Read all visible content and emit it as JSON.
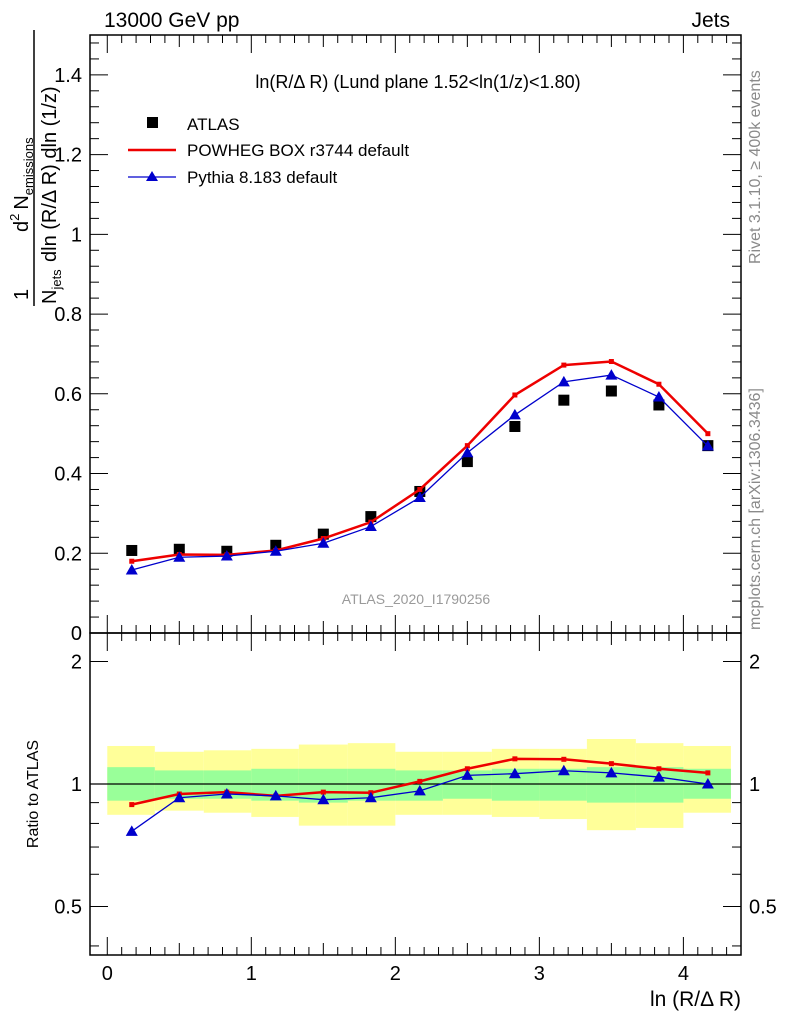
{
  "header": {
    "left": "13000 GeV pp",
    "right": "Jets"
  },
  "side_labels": {
    "rivet": "Rivet 3.1.10, ≥ 400k events",
    "mcplots": "mcplots.cern.ch [arXiv:1306.3436]"
  },
  "chart_data": [
    {
      "type": "line",
      "panel": "main",
      "title": "ln(R/Δ R) (Lund plane 1.52<ln(1/z)<1.80)",
      "watermark": "ATLAS_2020_I1790256",
      "ylabel": "1/N_jets d² N_emissions / dln (R/Δ R) dln (1/z)",
      "ylabel_parts": {
        "frac_num": "1",
        "frac_den_main": "N",
        "frac_den_sub": "jets",
        "d2": "d",
        "d2_sup": "2",
        "n": "N",
        "n_sub": "emissions",
        "rest": "dln (R/Δ R) dln (1/z)"
      },
      "xlim": [
        -0.12,
        4.4
      ],
      "ylim": [
        0,
        1.5
      ],
      "y_ticks": [
        0,
        0.2,
        0.4,
        0.6,
        0.8,
        1,
        1.2,
        1.4
      ],
      "y_tick_labels": [
        "0",
        "0.2",
        "0.4",
        "0.6",
        "0.8",
        "1",
        "1.2",
        "1.4"
      ],
      "legend_position": "top-left",
      "x": [
        0.17,
        0.5,
        0.83,
        1.17,
        1.5,
        1.83,
        2.17,
        2.5,
        2.83,
        3.17,
        3.5,
        3.83,
        4.17
      ],
      "series": [
        {
          "name": "ATLAS",
          "color": "#000000",
          "marker": "square",
          "values": [
            0.207,
            0.21,
            0.205,
            0.22,
            0.248,
            0.292,
            0.355,
            0.43,
            0.518,
            0.584,
            0.607,
            0.572,
            0.47
          ]
        },
        {
          "name": "POWHEG BOX r3744 default",
          "color": "#ee0000",
          "marker": "small-square",
          "values": [
            0.18,
            0.197,
            0.196,
            0.207,
            0.237,
            0.278,
            0.36,
            0.47,
            0.597,
            0.672,
            0.681,
            0.624,
            0.5
          ]
        },
        {
          "name": "Pythia 8.183 default",
          "color": "#0000cc",
          "marker": "triangle",
          "values": [
            0.158,
            0.19,
            0.193,
            0.205,
            0.225,
            0.267,
            0.34,
            0.452,
            0.547,
            0.63,
            0.647,
            0.592,
            0.469
          ]
        }
      ]
    },
    {
      "type": "line",
      "panel": "ratio",
      "ylabel": "Ratio to ATLAS",
      "xlabel": "ln (R/Δ R)",
      "xlim": [
        -0.12,
        4.4
      ],
      "ylim": [
        0.38,
        2.35
      ],
      "y_ticks": [
        0.5,
        1,
        2
      ],
      "y_tick_labels": [
        "0.5",
        "1",
        "2"
      ],
      "x_ticks": [
        0,
        1,
        2,
        3,
        4
      ],
      "x_tick_labels": [
        "0",
        "1",
        "2",
        "3",
        "4"
      ],
      "x_edges": [
        0,
        0.33,
        0.67,
        1,
        1.33,
        1.67,
        2,
        2.33,
        2.67,
        3,
        3.33,
        3.67,
        4,
        4.33
      ],
      "band_inner": {
        "color": "#99ff99",
        "lo": [
          0.91,
          0.92,
          0.92,
          0.91,
          0.9,
          0.91,
          0.91,
          0.92,
          0.91,
          0.91,
          0.9,
          0.9,
          0.92
        ],
        "hi": [
          1.1,
          1.08,
          1.08,
          1.09,
          1.09,
          1.09,
          1.08,
          1.08,
          1.09,
          1.09,
          1.1,
          1.1,
          1.09
        ]
      },
      "band_outer": {
        "color": "#ffff99",
        "lo": [
          0.84,
          0.86,
          0.85,
          0.83,
          0.79,
          0.79,
          0.84,
          0.84,
          0.83,
          0.82,
          0.77,
          0.78,
          0.85
        ],
        "hi": [
          1.24,
          1.2,
          1.21,
          1.22,
          1.25,
          1.26,
          1.2,
          1.2,
          1.22,
          1.22,
          1.29,
          1.26,
          1.24
        ]
      },
      "x": [
        0.17,
        0.5,
        0.83,
        1.17,
        1.5,
        1.83,
        2.17,
        2.5,
        2.83,
        3.17,
        3.5,
        3.83,
        4.17
      ],
      "series": [
        {
          "name": "POWHEG BOX r3744 default",
          "color": "#ee0000",
          "marker": "small-square",
          "values": [
            0.89,
            0.945,
            0.955,
            0.935,
            0.955,
            0.952,
            1.015,
            1.09,
            1.153,
            1.15,
            1.122,
            1.09,
            1.065
          ]
        },
        {
          "name": "Pythia 8.183 default",
          "color": "#0000cc",
          "marker": "triangle",
          "values": [
            0.765,
            0.925,
            0.945,
            0.935,
            0.915,
            0.925,
            0.962,
            1.05,
            1.06,
            1.078,
            1.065,
            1.04,
            1.0
          ]
        }
      ]
    }
  ]
}
